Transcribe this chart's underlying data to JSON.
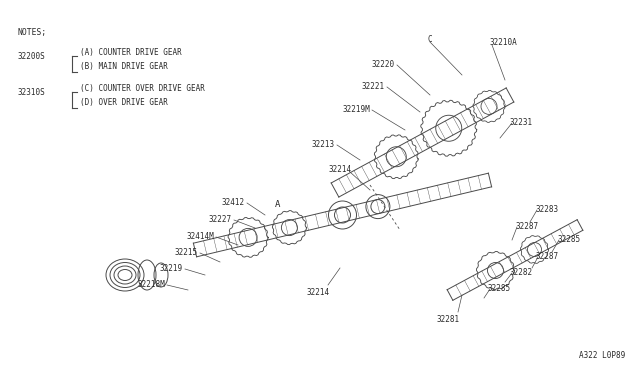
{
  "bg_color": "#ffffff",
  "line_color": "#4a4a4a",
  "text_color": "#2a2a2a",
  "title_bottom": "A322 L0P89",
  "notes_title": "NOTES;",
  "fig_width": 6.4,
  "fig_height": 3.72,
  "dpi": 100,
  "notes": [
    {
      "part": "32200S",
      "items": [
        "(A) COUNTER DRIVE GEAR",
        "(B) MAIN DRIVE GEAR"
      ]
    },
    {
      "part": "32310S",
      "items": [
        "(C) COUNTER OVER DRIVE GEAR",
        "(D) OVER DRIVE GEAR"
      ]
    }
  ],
  "font_size": 5.5,
  "font_size_notes": 5.8
}
